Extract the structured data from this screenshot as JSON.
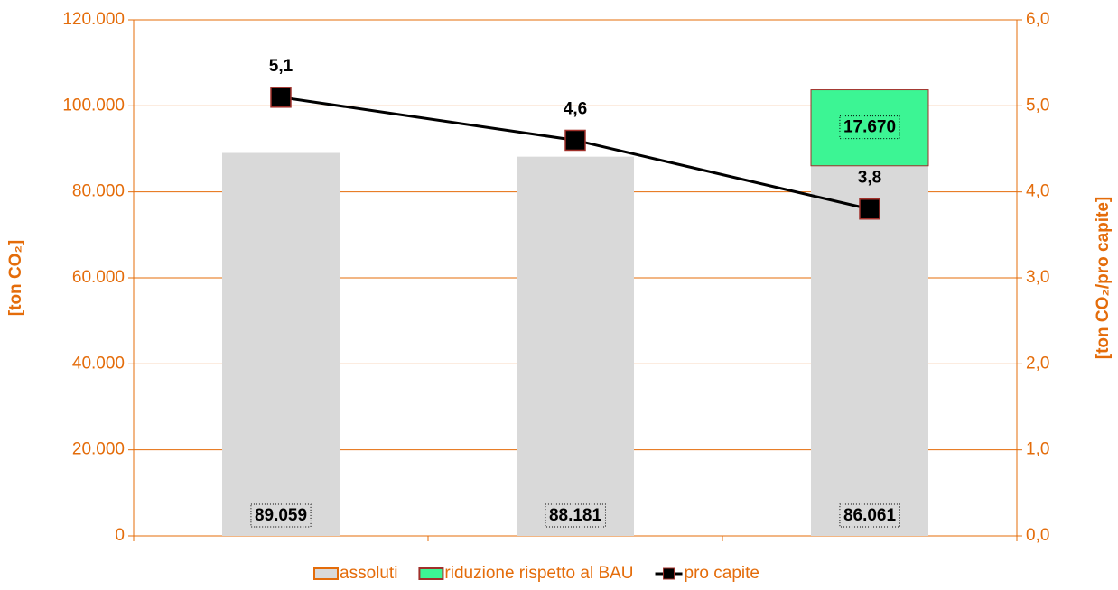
{
  "chart_data": {
    "type": "bar",
    "categories": [
      null,
      null,
      null
    ],
    "series": [
      {
        "name": "assoluti",
        "type": "bar",
        "color": "#d9d9d9",
        "values": [
          89059,
          88181,
          86061
        ],
        "value_labels": [
          "89.059",
          "88.181",
          "86.061"
        ]
      },
      {
        "name": "riduzione rispetto al BAU",
        "type": "bar",
        "color": "#3cf594",
        "values": [
          null,
          null,
          17670
        ],
        "value_labels": [
          null,
          null,
          "17.670"
        ]
      },
      {
        "name": "pro capite",
        "type": "line",
        "axis": "y2",
        "color": "#000000",
        "values": [
          5.1,
          4.6,
          3.8
        ],
        "value_labels": [
          "5,1",
          "4,6",
          "3,8"
        ]
      }
    ],
    "stacked": true,
    "ylabel": "[ton CO₂]",
    "y2label": "[ton CO₂/pro capite]",
    "ylim": [
      0,
      120000
    ],
    "yticks": [
      0,
      {
        "value": 20000,
        "label": "20.000"
      },
      {
        "value": 40000,
        "label": "40.000"
      },
      {
        "value": 60000,
        "label": "60.000"
      },
      {
        "value": 80000,
        "label": "80.000"
      },
      {
        "value": 100000,
        "label": "100.000"
      },
      {
        "value": 120000,
        "label": "120.000"
      }
    ],
    "y2lim": [
      0,
      6
    ],
    "y2ticks": [
      {
        "value": 0,
        "label": "0,0"
      },
      {
        "value": 1,
        "label": "1,0"
      },
      {
        "value": 2,
        "label": "2,0"
      },
      {
        "value": 3,
        "label": "3,0"
      },
      {
        "value": 4,
        "label": "4,0"
      },
      {
        "value": 5,
        "label": "5,0"
      },
      {
        "value": 6,
        "label": "6,0"
      }
    ],
    "grid": true,
    "legend": "bottom"
  }
}
